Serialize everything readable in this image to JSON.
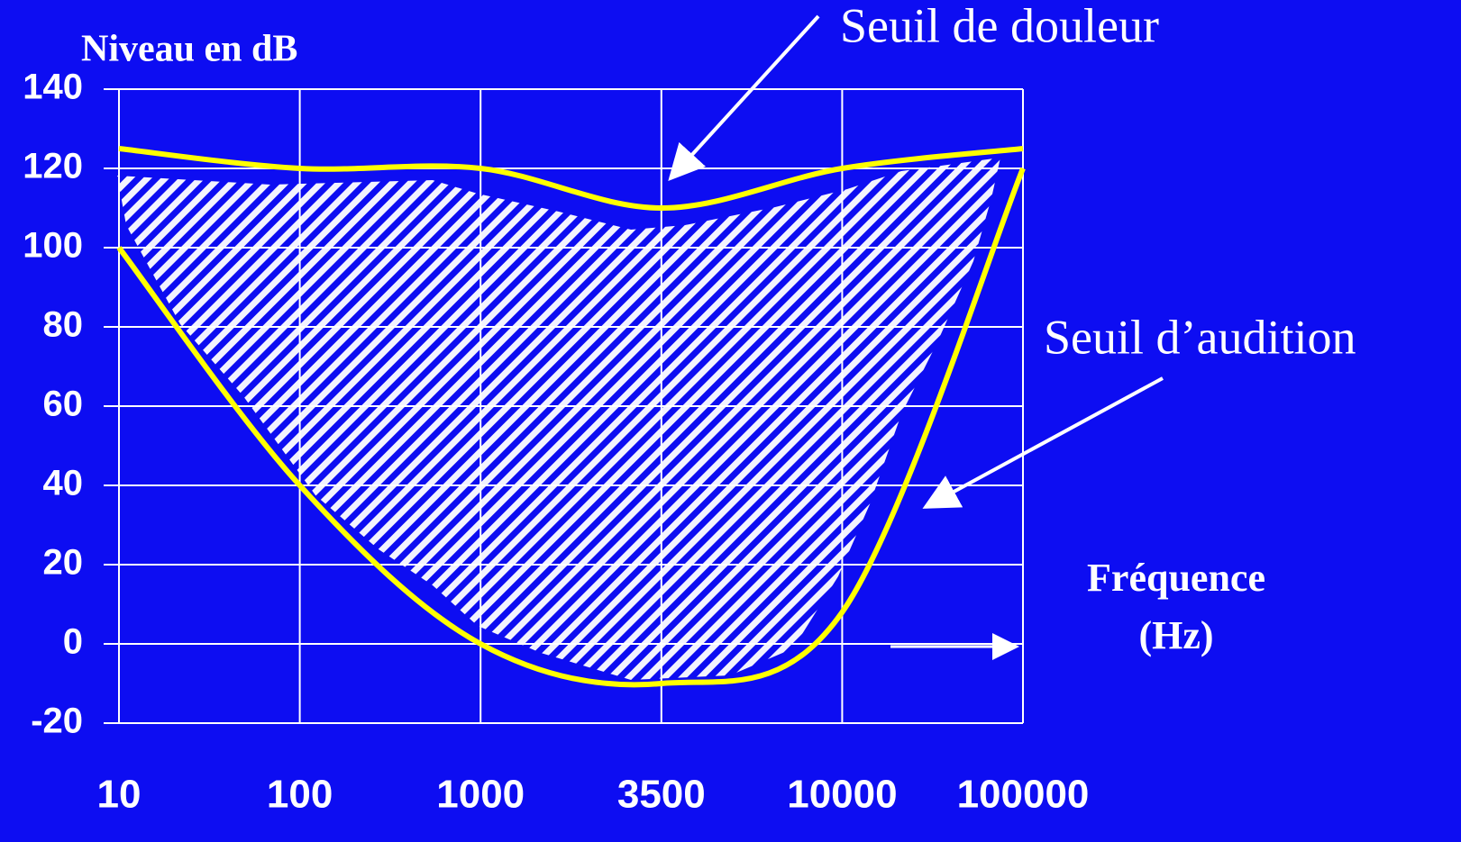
{
  "chart_data": {
    "type": "line",
    "ylabel": "Niveau en dB",
    "xlabel_lines": [
      "Fréquence",
      "(Hz)"
    ],
    "categories": [
      "10",
      "100",
      "1000",
      "3500",
      "10000",
      "100000"
    ],
    "series": [
      {
        "name": "Seuil de douleur",
        "color": "#ffff00",
        "values": [
          125,
          120,
          120,
          110,
          120,
          125
        ]
      },
      {
        "name": "Seuil d’audition",
        "color": "#ffff00",
        "values": [
          100,
          40,
          0,
          -10,
          8,
          120
        ]
      }
    ],
    "ylim": [
      -20,
      140
    ],
    "yticks": [
      -20,
      0,
      20,
      40,
      60,
      80,
      100,
      120,
      140
    ],
    "grid": true
  }
}
